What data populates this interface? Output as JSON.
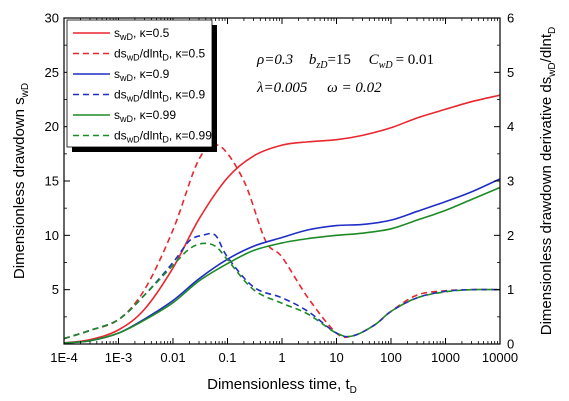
{
  "chart_data": {
    "type": "line",
    "xlabel": "Dimensionless time, t",
    "xlabel_sub": "D",
    "ylabel_left": "Dimensionless drawdown s",
    "ylabel_left_sub": "wD",
    "ylabel_right": "Dimensionless drawdown derivative ds",
    "ylabel_right_sub1": "wD",
    "ylabel_right_mid": "/dlnt",
    "ylabel_right_sub2": "D",
    "x_scale": "log",
    "xlim": [
      0.0001,
      10000
    ],
    "ylim_left": [
      0,
      30
    ],
    "ylim_right": [
      0,
      6
    ],
    "x_ticks": [
      "1E-4",
      "1E-3",
      "0.01",
      "0.1",
      "1",
      "10",
      "100",
      "1000",
      "10000"
    ],
    "y_left_ticks": [
      "5",
      "10",
      "15",
      "20",
      "25",
      "30"
    ],
    "y_right_ticks": [
      "0",
      "1",
      "2",
      "3",
      "4",
      "5",
      "6"
    ],
    "grid": false,
    "legend_position": "top-left",
    "parameters": {
      "line1": [
        "ρ=0.3",
        "b",
        "zD",
        "=15",
        "C",
        "wD",
        "= 0.01"
      ],
      "line2": [
        "λ=0.005",
        "ω = 0.02"
      ]
    },
    "series": [
      {
        "name": "s_wD, κ=0.5",
        "label_main": "s",
        "label_sub": "wD",
        "label_tail": ", κ=0.5",
        "color": "#e8272e",
        "dash": "solid",
        "axis": "left",
        "x": [
          0.0001,
          0.0003,
          0.001,
          0.003,
          0.01,
          0.03,
          0.1,
          0.3,
          1,
          3,
          10,
          30,
          100,
          300,
          1000,
          3000,
          10000
        ],
        "y": [
          0.1,
          0.4,
          1.3,
          3.2,
          7.0,
          11.5,
          15.3,
          17.3,
          18.3,
          18.6,
          18.8,
          19.2,
          19.9,
          20.8,
          21.6,
          22.3,
          22.9
        ]
      },
      {
        "name": "ds_wD/dlnt_D, κ=0.5",
        "label_main": "ds",
        "label_sub": "wD",
        "label_mid": "/dlnt",
        "label_sub2": "D",
        "label_tail": ", κ=0.5",
        "color": "#e8272e",
        "dash": "dashed",
        "axis": "right",
        "x": [
          0.0001,
          0.0003,
          0.001,
          0.003,
          0.01,
          0.03,
          0.07,
          0.2,
          0.5,
          1,
          3,
          10,
          20,
          50,
          100,
          300,
          1000,
          3000,
          10000
        ],
        "y": [
          0.1,
          0.25,
          0.45,
          1.0,
          2.1,
          3.4,
          3.65,
          3.0,
          1.9,
          1.6,
          0.85,
          0.2,
          0.15,
          0.35,
          0.6,
          0.9,
          0.98,
          1.0,
          1.0
        ]
      },
      {
        "name": "s_wD, κ=0.9",
        "label_main": "s",
        "label_sub": "wD",
        "label_tail": ", κ=0.9",
        "color": "#1f2ec4",
        "dash": "solid",
        "axis": "left",
        "x": [
          0.0001,
          0.0003,
          0.001,
          0.003,
          0.01,
          0.03,
          0.1,
          0.3,
          1,
          3,
          10,
          30,
          100,
          300,
          1000,
          3000,
          10000
        ],
        "y": [
          0.1,
          0.3,
          1.0,
          2.3,
          4.0,
          6.0,
          7.8,
          9.0,
          9.8,
          10.5,
          10.9,
          11.0,
          11.4,
          12.2,
          13.1,
          14.0,
          15.2
        ]
      },
      {
        "name": "ds_wD/dlnt_D, κ=0.9",
        "label_main": "ds",
        "label_sub": "wD",
        "label_mid": "/dlnt",
        "label_sub2": "D",
        "label_tail": ", κ=0.9",
        "color": "#1f2ec4",
        "dash": "dashed",
        "axis": "right",
        "x": [
          0.0001,
          0.0003,
          0.001,
          0.003,
          0.01,
          0.02,
          0.035,
          0.06,
          0.1,
          0.3,
          1,
          3,
          10,
          20,
          50,
          100,
          300,
          1000,
          3000,
          10000
        ],
        "y": [
          0.1,
          0.25,
          0.45,
          0.9,
          1.5,
          1.9,
          2.0,
          2.0,
          1.6,
          1.05,
          0.85,
          0.6,
          0.2,
          0.15,
          0.35,
          0.6,
          0.85,
          0.97,
          1.0,
          1.0
        ]
      },
      {
        "name": "s_wD, κ=0.99",
        "label_main": "s",
        "label_sub": "wD",
        "label_tail": ", κ=0.99",
        "color": "#1e8a26",
        "dash": "solid",
        "axis": "left",
        "x": [
          0.0001,
          0.0003,
          0.001,
          0.003,
          0.01,
          0.03,
          0.1,
          0.3,
          1,
          3,
          10,
          30,
          100,
          300,
          1000,
          3000,
          10000
        ],
        "y": [
          0.1,
          0.3,
          1.0,
          2.2,
          3.8,
          5.8,
          7.4,
          8.6,
          9.3,
          9.7,
          10.0,
          10.2,
          10.6,
          11.4,
          12.3,
          13.3,
          14.4
        ]
      },
      {
        "name": "ds_wD/dlnt_D, κ=0.99",
        "label_main": "ds",
        "label_sub": "wD",
        "label_mid": "/dlnt",
        "label_sub2": "D",
        "label_tail": ", κ=0.99",
        "color": "#1e8a26",
        "dash": "dashed",
        "axis": "right",
        "x": [
          0.0001,
          0.0003,
          0.001,
          0.003,
          0.01,
          0.02,
          0.035,
          0.06,
          0.1,
          0.3,
          1,
          3,
          10,
          20,
          50,
          100,
          300,
          1000,
          3000,
          10000
        ],
        "y": [
          0.1,
          0.25,
          0.45,
          0.9,
          1.45,
          1.75,
          1.85,
          1.8,
          1.55,
          1.0,
          0.75,
          0.55,
          0.2,
          0.15,
          0.35,
          0.6,
          0.85,
          0.96,
          1.0,
          1.0
        ]
      }
    ]
  }
}
